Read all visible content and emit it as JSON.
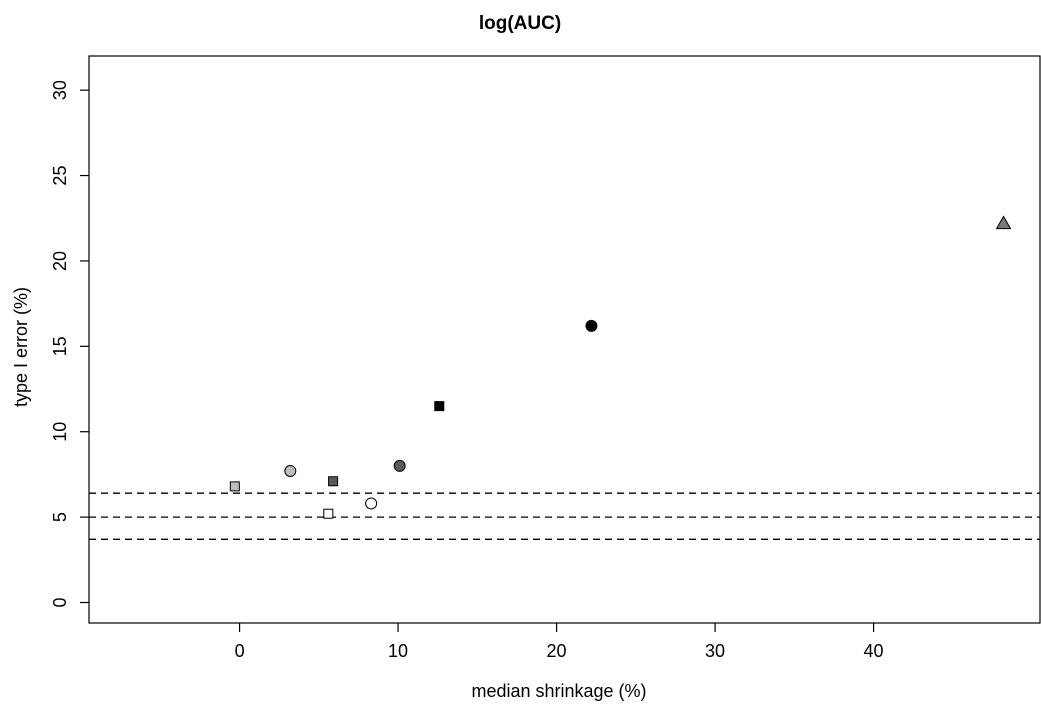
{
  "chart_data": {
    "type": "scatter",
    "title": "log(AUC)",
    "xlabel": "median shrinkage (%)",
    "ylabel": "type I error (%)",
    "xlim": [
      -9.5,
      50.5
    ],
    "ylim": [
      -1.2,
      32
    ],
    "xticks": [
      0,
      10,
      20,
      30,
      40
    ],
    "yticks": [
      0,
      5,
      10,
      15,
      20,
      25,
      30
    ],
    "grid": false,
    "reference_lines_y": [
      3.7,
      5.0,
      6.4
    ],
    "reference_line_style": "dashed",
    "points": [
      {
        "x": -0.3,
        "y": 6.8,
        "shape": "square",
        "fill": "#bdbdbd"
      },
      {
        "x": 3.2,
        "y": 7.7,
        "shape": "circle",
        "fill": "#bdbdbd"
      },
      {
        "x": 5.6,
        "y": 5.2,
        "shape": "square",
        "fill": "#ffffff"
      },
      {
        "x": 5.9,
        "y": 7.1,
        "shape": "square",
        "fill": "#5a5a5a"
      },
      {
        "x": 8.3,
        "y": 5.8,
        "shape": "circle",
        "fill": "#ffffff"
      },
      {
        "x": 10.1,
        "y": 8.0,
        "shape": "circle",
        "fill": "#5a5a5a"
      },
      {
        "x": 12.6,
        "y": 11.5,
        "shape": "square",
        "fill": "#000000"
      },
      {
        "x": 22.2,
        "y": 16.2,
        "shape": "circle",
        "fill": "#000000"
      },
      {
        "x": 48.2,
        "y": 22.2,
        "shape": "triangle",
        "fill": "#7a7a7a"
      }
    ]
  }
}
